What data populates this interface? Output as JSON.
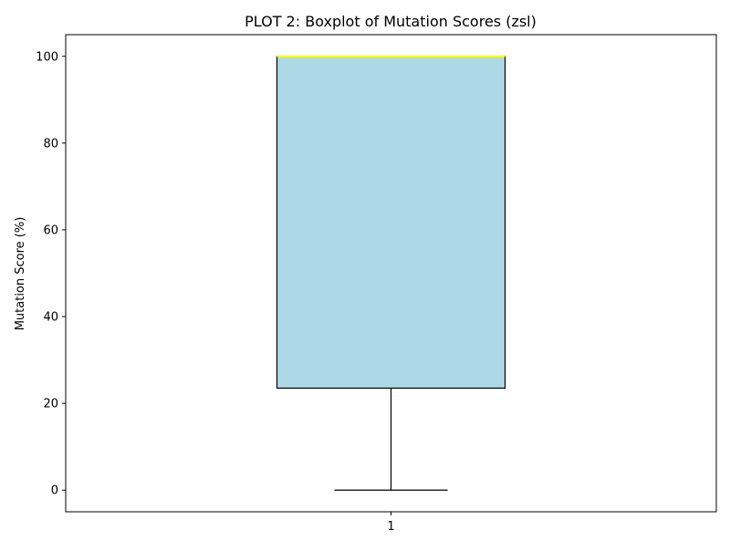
{
  "chart_data": {
    "type": "boxplot",
    "title": "PLOT 2: Boxplot of Mutation Scores (zsl)",
    "xlabel": "",
    "ylabel": "Mutation Score (%)",
    "categories": [
      "1"
    ],
    "ylim": [
      -5,
      105
    ],
    "yticks": [
      0,
      20,
      40,
      60,
      80,
      100
    ],
    "grid": false,
    "boxes": [
      {
        "category": "1",
        "whisker_low": 0,
        "q1": 23.5,
        "median": 100,
        "q3": 100,
        "whisker_high": 100
      }
    ],
    "colors": {
      "box_fill": "#add8e6",
      "box_edge": "#000000",
      "median": "#ffff00",
      "whisker": "#000000"
    }
  }
}
